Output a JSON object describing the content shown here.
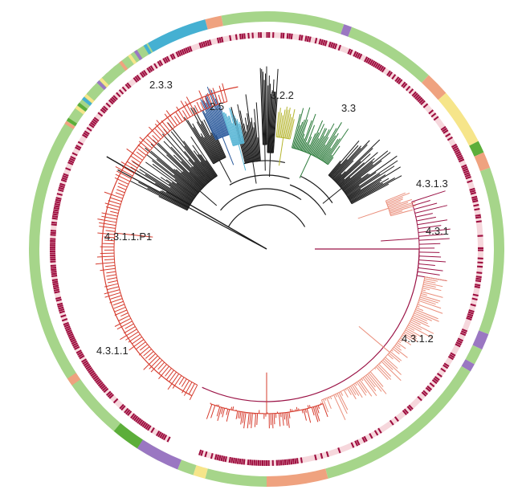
{
  "clade_labels": {
    "c233": "2.3.3",
    "c25": "2.5",
    "c322": "3.2.2",
    "c33": "3.3",
    "c4313": "4.3.1.3",
    "c431": "4.3.1",
    "c4311p1": "4.3.1.1.P1",
    "c4311": "4.3.1.1",
    "c4312": "4.3.1.2"
  },
  "colors": {
    "black": "#1a1a1a",
    "blue_233": "#2b5a9c",
    "cyan_25": "#5bb7d6",
    "yellow_322": "#b5b52e",
    "green_33": "#2f7d3e",
    "crimson_431": "#9b1346",
    "salmon_4312": "#ea8f7c",
    "red_4311": "#d63c2e",
    "ring_green": "#a6d58a",
    "ring_orange": "#efa27f",
    "ring_yellow": "#f6e58a",
    "ring_teal": "#45b0d2",
    "ring_purple": "#9a77c2",
    "ring_dark_green": "#5cae3a",
    "marker_dark": "#9e0f40",
    "marker_light": "#f6d7dc"
  }
}
